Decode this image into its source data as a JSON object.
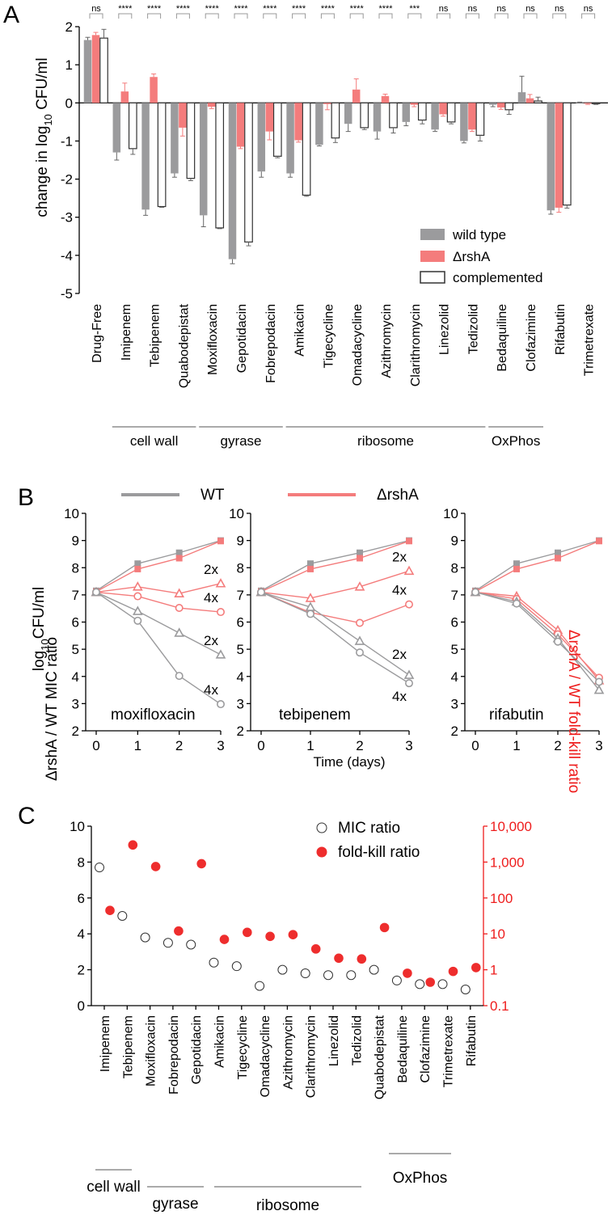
{
  "colors": {
    "wt": "#9b9b9d",
    "mutant": "#f47c7c",
    "complemented": "#ffffff",
    "red_axis": "#ee1c1c",
    "ratio_fill": "#ee2d2d"
  },
  "chart_data": [
    {
      "panel": "A",
      "type": "bar",
      "ylabel_pre": "change in log",
      "ylabel_sub": "10",
      "ylabel_post": " CFU/ml",
      "ylim": [
        -5,
        2
      ],
      "yticks": [
        "2",
        "1",
        "0",
        "-1",
        "-2",
        "-3",
        "-4",
        "-5"
      ],
      "categories": [
        "Drug-Free",
        "Imipenem",
        "Tebipenem",
        "Quabodepistat",
        "Moxifloxacin",
        "Gepotidacin",
        "Fobrepodacin",
        "Amikacin",
        "Tigecycline",
        "Omadacycline",
        "Azithromycin",
        "Clarithromycin",
        "Linezolid",
        "Tedizolid",
        "Bedaquiline",
        "Clofazimine",
        "Rifabutin",
        "Trimetrexate"
      ],
      "significance": [
        "ns",
        "****",
        "****",
        "****",
        "****",
        "****",
        "****",
        "****",
        "****",
        "****",
        "****",
        "***",
        "ns",
        "ns",
        "ns",
        "ns",
        "ns",
        "ns"
      ],
      "series": [
        {
          "name": "wild type",
          "values": [
            1.65,
            -1.3,
            -2.8,
            -1.85,
            -2.95,
            -4.1,
            -1.8,
            -1.85,
            -1.1,
            -0.55,
            -0.75,
            -0.5,
            -0.7,
            -1.0,
            -0.05,
            0.28,
            -2.82,
            0.01
          ],
          "errors": [
            0.07,
            0.2,
            0.15,
            0.1,
            0.3,
            0.12,
            0.15,
            0.1,
            0.03,
            0.2,
            0.2,
            0.1,
            0.05,
            0.05,
            0.05,
            0.42,
            0.1,
            0.01
          ]
        },
        {
          "name": "ΔrshA",
          "values": [
            1.78,
            0.3,
            0.68,
            -0.65,
            -0.1,
            -1.15,
            -0.75,
            -0.98,
            -0.03,
            0.35,
            0.18,
            -0.05,
            -0.3,
            -0.7,
            -0.12,
            0.12,
            -2.75,
            -0.02
          ],
          "errors": [
            0.07,
            0.22,
            0.08,
            0.22,
            0.05,
            0.05,
            0.22,
            0.05,
            0.15,
            0.28,
            0.05,
            0.05,
            0.05,
            0.05,
            0.05,
            0.1,
            0.12,
            0.02
          ]
        },
        {
          "name": "complemented",
          "values": [
            1.7,
            -1.2,
            -2.72,
            -1.98,
            -3.28,
            -3.65,
            -1.4,
            -2.42,
            -0.92,
            -0.65,
            -0.65,
            -0.45,
            -0.5,
            -0.85,
            -0.18,
            0.05,
            -2.68,
            -0.02
          ],
          "errors": [
            0.23,
            0.15,
            0.02,
            0.06,
            0.02,
            0.1,
            0.04,
            0.03,
            0.12,
            0.05,
            0.14,
            0.1,
            0.05,
            0.15,
            0.12,
            0.1,
            0.08,
            0.02
          ]
        }
      ],
      "groups": [
        {
          "label": "cell wall",
          "from": 1,
          "to": 3
        },
        {
          "label": "gyrase",
          "from": 4,
          "to": 6
        },
        {
          "label": "ribosome",
          "from": 7,
          "to": 13
        },
        {
          "label": "OxPhos",
          "from": 14,
          "to": 15
        }
      ]
    },
    {
      "panel": "B",
      "type": "line",
      "legend": [
        "WT",
        "ΔrshA"
      ],
      "ylabel_pre": "log",
      "ylabel_sub": "10",
      "ylabel_post": "CFU/ml",
      "xlabel": "Time (days)",
      "x": [
        0,
        1,
        2,
        3
      ],
      "xticks": [
        "0",
        "1",
        "2",
        "3"
      ],
      "ylim": [
        2,
        10
      ],
      "yticks": [
        "2",
        "3",
        "4",
        "5",
        "6",
        "7",
        "8",
        "9",
        "10"
      ],
      "subplots": [
        {
          "drug": "moxifloxacin",
          "series": [
            {
              "strain": "WT",
              "dose": "0x",
              "marker": "square",
              "values": [
                7.15,
                8.15,
                8.55,
                9.0
              ]
            },
            {
              "strain": "ΔrshA",
              "dose": "0x",
              "marker": "square",
              "values": [
                7.12,
                7.95,
                8.35,
                8.98
              ]
            },
            {
              "strain": "ΔrshA",
              "dose": "2x",
              "marker": "triangle",
              "values": [
                7.1,
                7.3,
                7.05,
                7.42
              ]
            },
            {
              "strain": "ΔrshA",
              "dose": "4x",
              "marker": "circle",
              "values": [
                7.1,
                6.95,
                6.52,
                6.37
              ]
            },
            {
              "strain": "WT",
              "dose": "2x",
              "marker": "triangle",
              "values": [
                7.1,
                6.4,
                5.6,
                4.8
              ]
            },
            {
              "strain": "WT",
              "dose": "4x",
              "marker": "circle",
              "values": [
                7.1,
                6.05,
                4.02,
                2.98
              ]
            }
          ],
          "annotations": [
            "2x",
            "4x",
            "2x",
            "4x"
          ]
        },
        {
          "drug": "tebipenem",
          "series": [
            {
              "strain": "WT",
              "dose": "0x",
              "marker": "square",
              "values": [
                7.15,
                8.15,
                8.55,
                9.0
              ]
            },
            {
              "strain": "ΔrshA",
              "dose": "0x",
              "marker": "square",
              "values": [
                7.12,
                7.95,
                8.35,
                8.98
              ]
            },
            {
              "strain": "ΔrshA",
              "dose": "2x",
              "marker": "triangle",
              "values": [
                7.1,
                6.88,
                7.3,
                7.88
              ]
            },
            {
              "strain": "ΔrshA",
              "dose": "4x",
              "marker": "circle",
              "values": [
                7.1,
                6.35,
                5.97,
                6.65
              ]
            },
            {
              "strain": "WT",
              "dose": "2x",
              "marker": "triangle",
              "values": [
                7.1,
                6.55,
                5.3,
                4.05
              ]
            },
            {
              "strain": "WT",
              "dose": "4x",
              "marker": "circle",
              "values": [
                7.1,
                6.3,
                4.88,
                3.75
              ]
            }
          ],
          "annotations": [
            "2x",
            "4x",
            "2x",
            "4x"
          ]
        },
        {
          "drug": "rifabutin",
          "series": [
            {
              "strain": "WT",
              "dose": "0x",
              "marker": "square",
              "values": [
                7.15,
                8.15,
                8.55,
                9.0
              ]
            },
            {
              "strain": "ΔrshA",
              "dose": "0x",
              "marker": "square",
              "values": [
                7.12,
                7.95,
                8.35,
                8.98
              ]
            },
            {
              "strain": "ΔrshA",
              "dose": "2x",
              "marker": "triangle",
              "values": [
                7.1,
                6.95,
                5.7,
                3.85
              ]
            },
            {
              "strain": "ΔrshA",
              "dose": "4x",
              "marker": "circle",
              "values": [
                7.1,
                6.85,
                5.55,
                3.95
              ]
            },
            {
              "strain": "WT",
              "dose": "2x",
              "marker": "triangle",
              "values": [
                7.1,
                6.75,
                5.4,
                3.5
              ]
            },
            {
              "strain": "WT",
              "dose": "4x",
              "marker": "circle",
              "values": [
                7.1,
                6.68,
                5.28,
                3.8
              ]
            }
          ],
          "annotations": []
        }
      ]
    },
    {
      "panel": "C",
      "type": "scatter",
      "ylabel_left": "ΔrshA / WT MIC ratio",
      "ylabel_right": "ΔrshA / WT fold-kill ratio",
      "ylim_left": [
        0,
        10
      ],
      "yticks_left": [
        "10",
        "8",
        "6",
        "4",
        "2",
        "0"
      ],
      "ylim_right_log": [
        0.1,
        10000
      ],
      "yticks_right": [
        "10,000",
        "1,000",
        "100",
        "10",
        "1",
        "0.1"
      ],
      "categories": [
        "Imipenem",
        "Tebipenem",
        "Moxifloxacin",
        "Fobrepodacin",
        "Gepotidacin",
        "Amikacin",
        "Tigecycline",
        "Omadacycline",
        "Azithromycin",
        "Clarithromycin",
        "Linezolid",
        "Tedizolid",
        "Quabodepistat",
        "Bedaquiline",
        "Clofazimine",
        "Trimetrexate",
        "Rifabutin"
      ],
      "series": [
        {
          "name": "MIC ratio",
          "axis": "left",
          "values": [
            7.7,
            5.0,
            3.8,
            3.5,
            3.4,
            2.4,
            2.2,
            1.1,
            2.0,
            1.8,
            1.7,
            1.7,
            2.0,
            1.4,
            1.2,
            1.2,
            0.9
          ]
        },
        {
          "name": "fold-kill ratio",
          "axis": "right",
          "values": [
            45,
            3000,
            750,
            12,
            900,
            7,
            11,
            8.5,
            9.5,
            3.8,
            2.1,
            2.0,
            15,
            0.8,
            0.45,
            0.9,
            1.15
          ]
        }
      ],
      "groups": [
        {
          "label": "cell wall",
          "from": 0,
          "to": 1
        },
        {
          "label": "gyrase",
          "from": 2,
          "to": 4
        },
        {
          "label": "ribosome",
          "from": 5,
          "to": 11
        },
        {
          "label": "OxPhos",
          "from": 13,
          "to": 14
        }
      ]
    }
  ]
}
